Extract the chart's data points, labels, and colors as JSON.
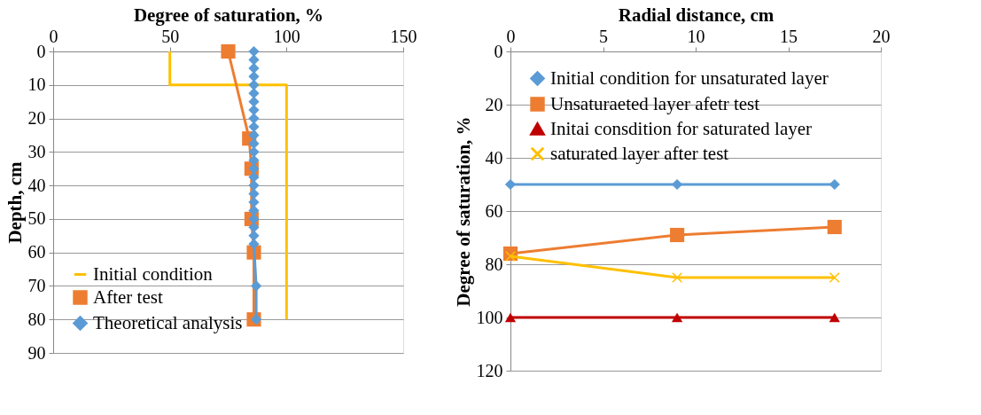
{
  "chart_data": [
    {
      "type": "line",
      "xlabel": "Degree of saturation, %",
      "ylabel": "Depth, cm",
      "xlim": [
        0,
        150
      ],
      "xticks": [
        0,
        50,
        100,
        150
      ],
      "ylim": [
        90,
        0
      ],
      "yticks": [
        0,
        10,
        20,
        30,
        40,
        50,
        60,
        70,
        80,
        90
      ],
      "grid": "y",
      "legend": "bottom left",
      "series": [
        {
          "name": "Initial condition",
          "color": "#ffc000",
          "marker": "none",
          "x": [
            50,
            50,
            100,
            100
          ],
          "values": [
            0,
            10,
            10,
            80
          ]
        },
        {
          "name": "After test",
          "color": "#ed7d31",
          "marker": "square",
          "x": [
            75,
            84,
            85,
            85,
            86,
            86
          ],
          "values": [
            0,
            26,
            35,
            50,
            60,
            80
          ]
        },
        {
          "name": "Theoretical analysis",
          "color": "#5b9bd5",
          "marker": "diamond",
          "x": [
            86,
            86,
            86,
            86,
            86,
            86,
            86,
            86,
            86,
            86,
            86,
            86,
            86,
            86,
            86,
            86,
            86,
            86,
            86,
            86,
            86,
            86,
            86,
            86,
            87,
            87
          ],
          "values": [
            0,
            2.5,
            5,
            7.5,
            10,
            12.5,
            15,
            17.5,
            20,
            22.5,
            25,
            27.5,
            30,
            32.5,
            35,
            37.5,
            40,
            42.5,
            45,
            47.5,
            50,
            52.5,
            55,
            57.5,
            70,
            80
          ]
        }
      ]
    },
    {
      "type": "line",
      "xlabel": "Radial distance, cm",
      "ylabel": "Degree of saturation, %",
      "xlim": [
        0,
        20
      ],
      "xticks": [
        0,
        5,
        10,
        15,
        20
      ],
      "ylim": [
        120,
        0
      ],
      "yticks": [
        0,
        20,
        40,
        60,
        80,
        100,
        120
      ],
      "grid": "y",
      "legend": "top",
      "series": [
        {
          "name": "Initial condition for unsaturated layer",
          "color": "#5b9bd5",
          "marker": "diamond",
          "x": [
            0,
            9,
            17.5
          ],
          "values": [
            50,
            50,
            50
          ]
        },
        {
          "name": "Unsaturaeted layer afetr test",
          "color": "#ed7d31",
          "marker": "square",
          "x": [
            0,
            9,
            17.5
          ],
          "values": [
            76,
            69,
            66
          ]
        },
        {
          "name": "Initai consdition for saturated layer",
          "color": "#c00000",
          "marker": "triangle",
          "x": [
            0,
            9,
            17.5
          ],
          "values": [
            100,
            100,
            100
          ]
        },
        {
          "name": "saturated layer after test",
          "color": "#ffc000",
          "marker": "cross",
          "x": [
            0,
            9,
            17.5
          ],
          "values": [
            77,
            85,
            85
          ]
        }
      ]
    }
  ]
}
